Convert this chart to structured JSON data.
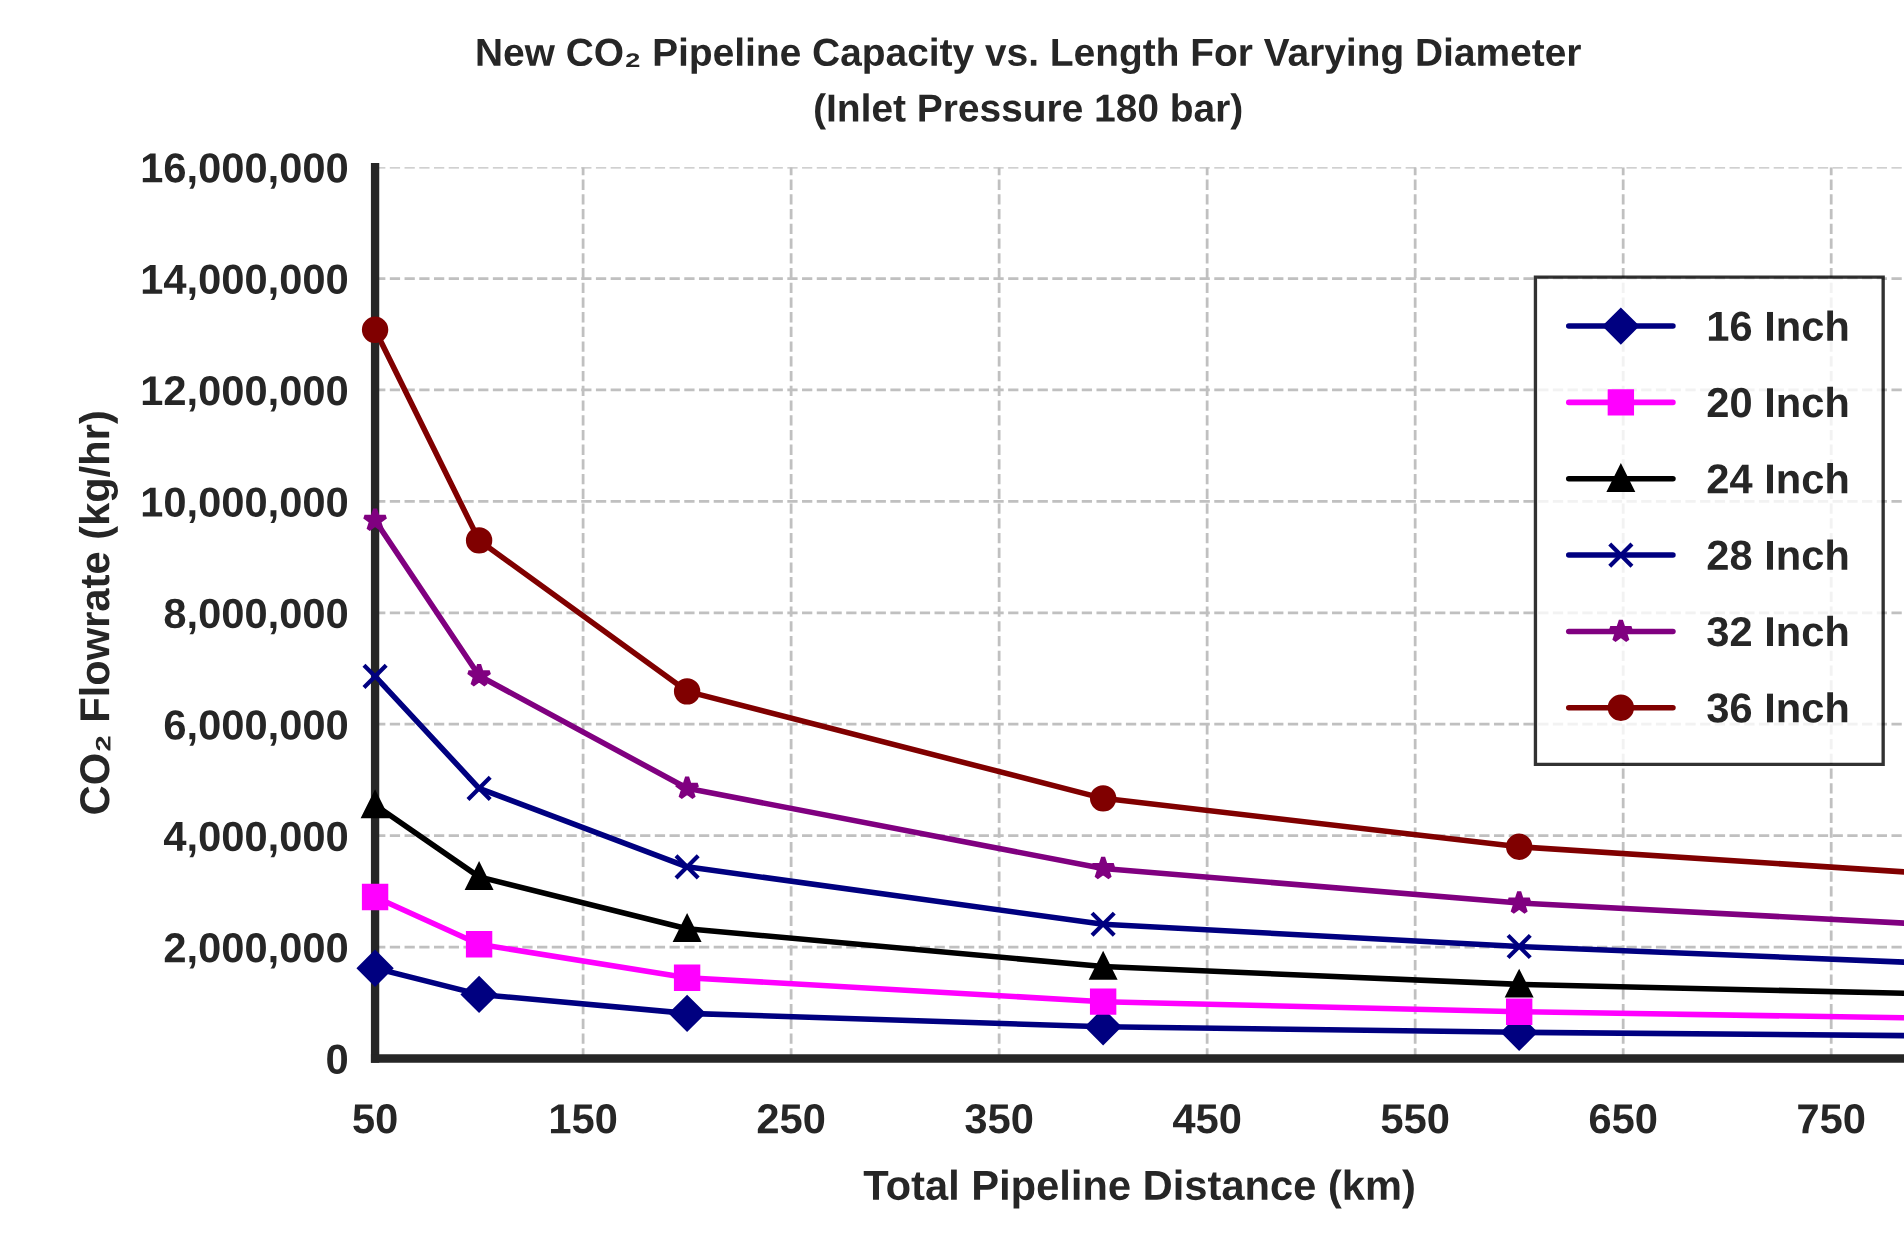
{
  "chart_data": {
    "type": "line",
    "title": "New CO₂ Pipeline Capacity vs. Length For Varying Diameter",
    "subtitle": "(Inlet Pressure 180 bar)",
    "xlabel": "Total Pipeline Distance (km)",
    "ylabel": "CO₂ Flowrate (kg/hr)",
    "x": [
      50,
      100,
      200,
      400,
      600,
      785
    ],
    "series": [
      {
        "name": "16 Inch",
        "color": "#000080",
        "marker": "diamond",
        "values": [
          1620000,
          1150000,
          810000,
          570000,
          470000,
          410000
        ]
      },
      {
        "name": "20 Inch",
        "color": "#ff00ff",
        "marker": "square",
        "values": [
          2900000,
          2050000,
          1450000,
          1020000,
          840000,
          730000
        ]
      },
      {
        "name": "24 Inch",
        "color": "#000000",
        "marker": "triangle",
        "values": [
          4550000,
          3260000,
          2330000,
          1650000,
          1330000,
          1170000
        ]
      },
      {
        "name": "28 Inch",
        "color": "#000080",
        "marker": "cross",
        "values": [
          6860000,
          4850000,
          3440000,
          2410000,
          2010000,
          1730000
        ]
      },
      {
        "name": "32 Inch",
        "color": "#800080",
        "marker": "star",
        "values": [
          9660000,
          6870000,
          4850000,
          3410000,
          2790000,
          2430000
        ]
      },
      {
        "name": "36 Inch",
        "color": "#800000",
        "marker": "circle",
        "values": [
          13080000,
          9300000,
          6590000,
          4670000,
          3800000,
          3350000
        ]
      }
    ],
    "xlim": [
      50,
      785
    ],
    "xticks": [
      50,
      150,
      250,
      350,
      450,
      550,
      650,
      750
    ],
    "ylim": [
      0,
      16000000
    ],
    "yticks": [
      {
        "value": 0,
        "label": "0"
      },
      {
        "value": 2000000,
        "label": "2,000,000"
      },
      {
        "value": 4000000,
        "label": "4,000,000"
      },
      {
        "value": 6000000,
        "label": "6,000,000"
      },
      {
        "value": 8000000,
        "label": "8,000,000"
      },
      {
        "value": 10000000,
        "label": "10,000,000"
      },
      {
        "value": 12000000,
        "label": "12,000,000"
      },
      {
        "value": 14000000,
        "label": "14,000,000"
      },
      {
        "value": 16000000,
        "label": "16,000,000"
      }
    ],
    "grid": true,
    "legend": "top right",
    "line_style": "solid"
  }
}
